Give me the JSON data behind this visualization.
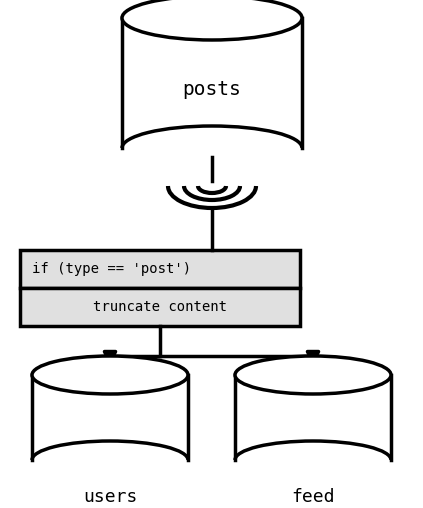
{
  "bg_color": "#ffffff",
  "line_color": "#000000",
  "box_fill": "#e0e0e0",
  "box_border": "#000000",
  "font_family": "monospace",
  "posts_label": "posts",
  "filter_label": "if (type == 'post')",
  "truncate_label": "truncate content",
  "users_label": "users",
  "feed_label": "feed",
  "lw": 2.5,
  "figw": 4.23,
  "figh": 5.08,
  "dpi": 100
}
